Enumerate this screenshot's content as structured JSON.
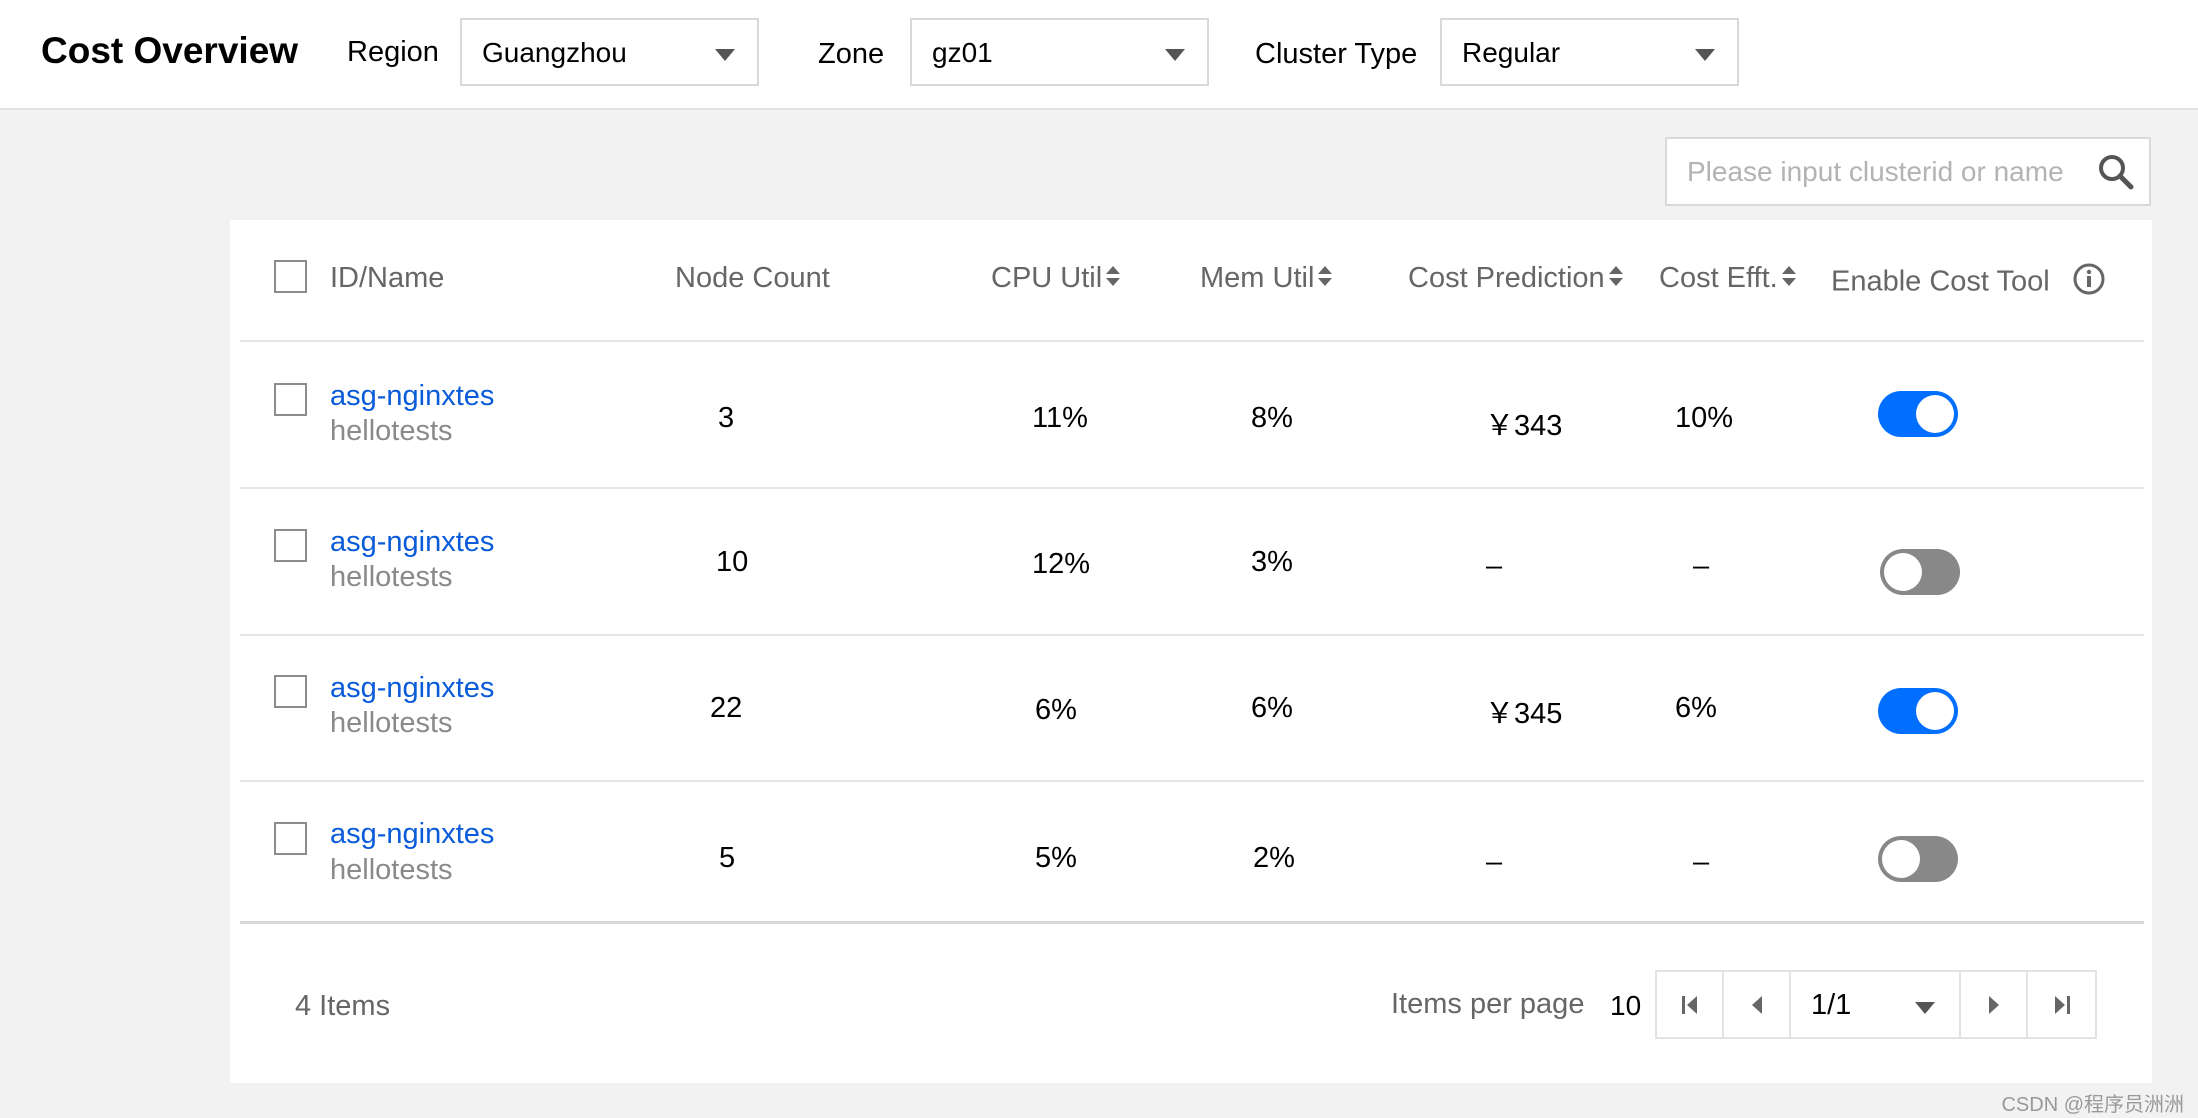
{
  "header": {
    "title": "Cost Overview",
    "region_label": "Region",
    "region_value": "Guangzhou",
    "zone_label": "Zone",
    "zone_value": "gz01",
    "cluster_type_label": "Cluster Type",
    "cluster_type_value": "Regular"
  },
  "search": {
    "placeholder": "Please input clusterid or name",
    "icon": "search-icon"
  },
  "table": {
    "columns": [
      {
        "label": "ID/Name",
        "sortable": false
      },
      {
        "label": "Node Count",
        "sortable": false
      },
      {
        "label": "CPU Util",
        "sortable": true
      },
      {
        "label": "Mem Util",
        "sortable": true
      },
      {
        "label": "Cost Prediction",
        "sortable": true
      },
      {
        "label": "Cost Efft.",
        "sortable": true
      },
      {
        "label": "Enable Cost Tool",
        "sortable": false,
        "icon": "info-icon"
      }
    ],
    "rows": [
      {
        "id": "asg-nginxtes",
        "name": "hellotests",
        "node_count": "3",
        "cpu": "11%",
        "mem": "8%",
        "cost_prediction": "￥343",
        "cost_efft": "10%",
        "enabled": true
      },
      {
        "id": "asg-nginxtes",
        "name": "hellotests",
        "node_count": "10",
        "cpu": "12%",
        "mem": "3%",
        "cost_prediction": "–",
        "cost_efft": "–",
        "enabled": false
      },
      {
        "id": "asg-nginxtes",
        "name": "hellotests",
        "node_count": "22",
        "cpu": "6%",
        "mem": "6%",
        "cost_prediction": "￥345",
        "cost_efft": "6%",
        "enabled": true
      },
      {
        "id": "asg-nginxtes",
        "name": "hellotests",
        "node_count": "5",
        "cpu": "5%",
        "mem": "2%",
        "cost_prediction": "–",
        "cost_efft": "–",
        "enabled": false
      }
    ]
  },
  "footer": {
    "items_count": "4 Items",
    "items_per_page_label": "Items per page",
    "items_per_page_value": "10",
    "page_value": "1/1"
  },
  "watermark": "CSDN @程序员洲洲",
  "colors": {
    "accent": "#006eff",
    "link": "#0a5bd9",
    "toggle_off": "#888888",
    "background": "#f2f2f2"
  }
}
